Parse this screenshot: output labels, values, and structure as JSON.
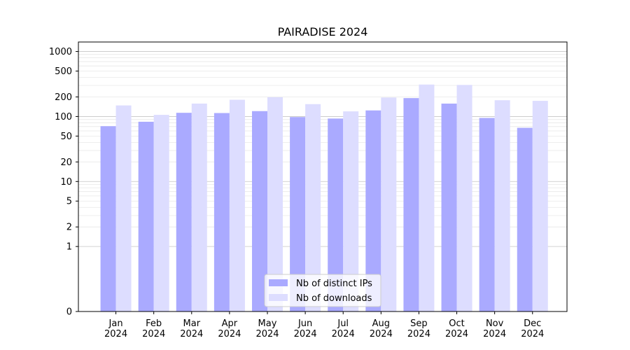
{
  "chart_data": {
    "type": "bar",
    "title": "PAIRADISE 2024",
    "xlabel": "",
    "ylabel": "",
    "yscale": "symlog",
    "ylim": [
      0,
      1400
    ],
    "yticks": [
      0,
      1,
      2,
      5,
      10,
      20,
      50,
      100,
      200,
      500,
      1000
    ],
    "grid": true,
    "legend_position": "bottom-center",
    "categories": [
      "Jan\n2024",
      "Feb\n2024",
      "Mar\n2024",
      "Apr\n2024",
      "May\n2024",
      "Jun\n2024",
      "Jul\n2024",
      "Aug\n2024",
      "Sep\n2024",
      "Oct\n2024",
      "Nov\n2024",
      "Dec\n2024"
    ],
    "series": [
      {
        "name": "Nb of distinct IPs",
        "color": "#aaaaff",
        "values": [
          71,
          83,
          114,
          113,
          121,
          98,
          93,
          124,
          192,
          158,
          95,
          67
        ]
      },
      {
        "name": "Nb of downloads",
        "color": "#ddddff",
        "values": [
          148,
          106,
          158,
          181,
          198,
          155,
          120,
          196,
          310,
          306,
          178,
          174
        ]
      }
    ]
  }
}
